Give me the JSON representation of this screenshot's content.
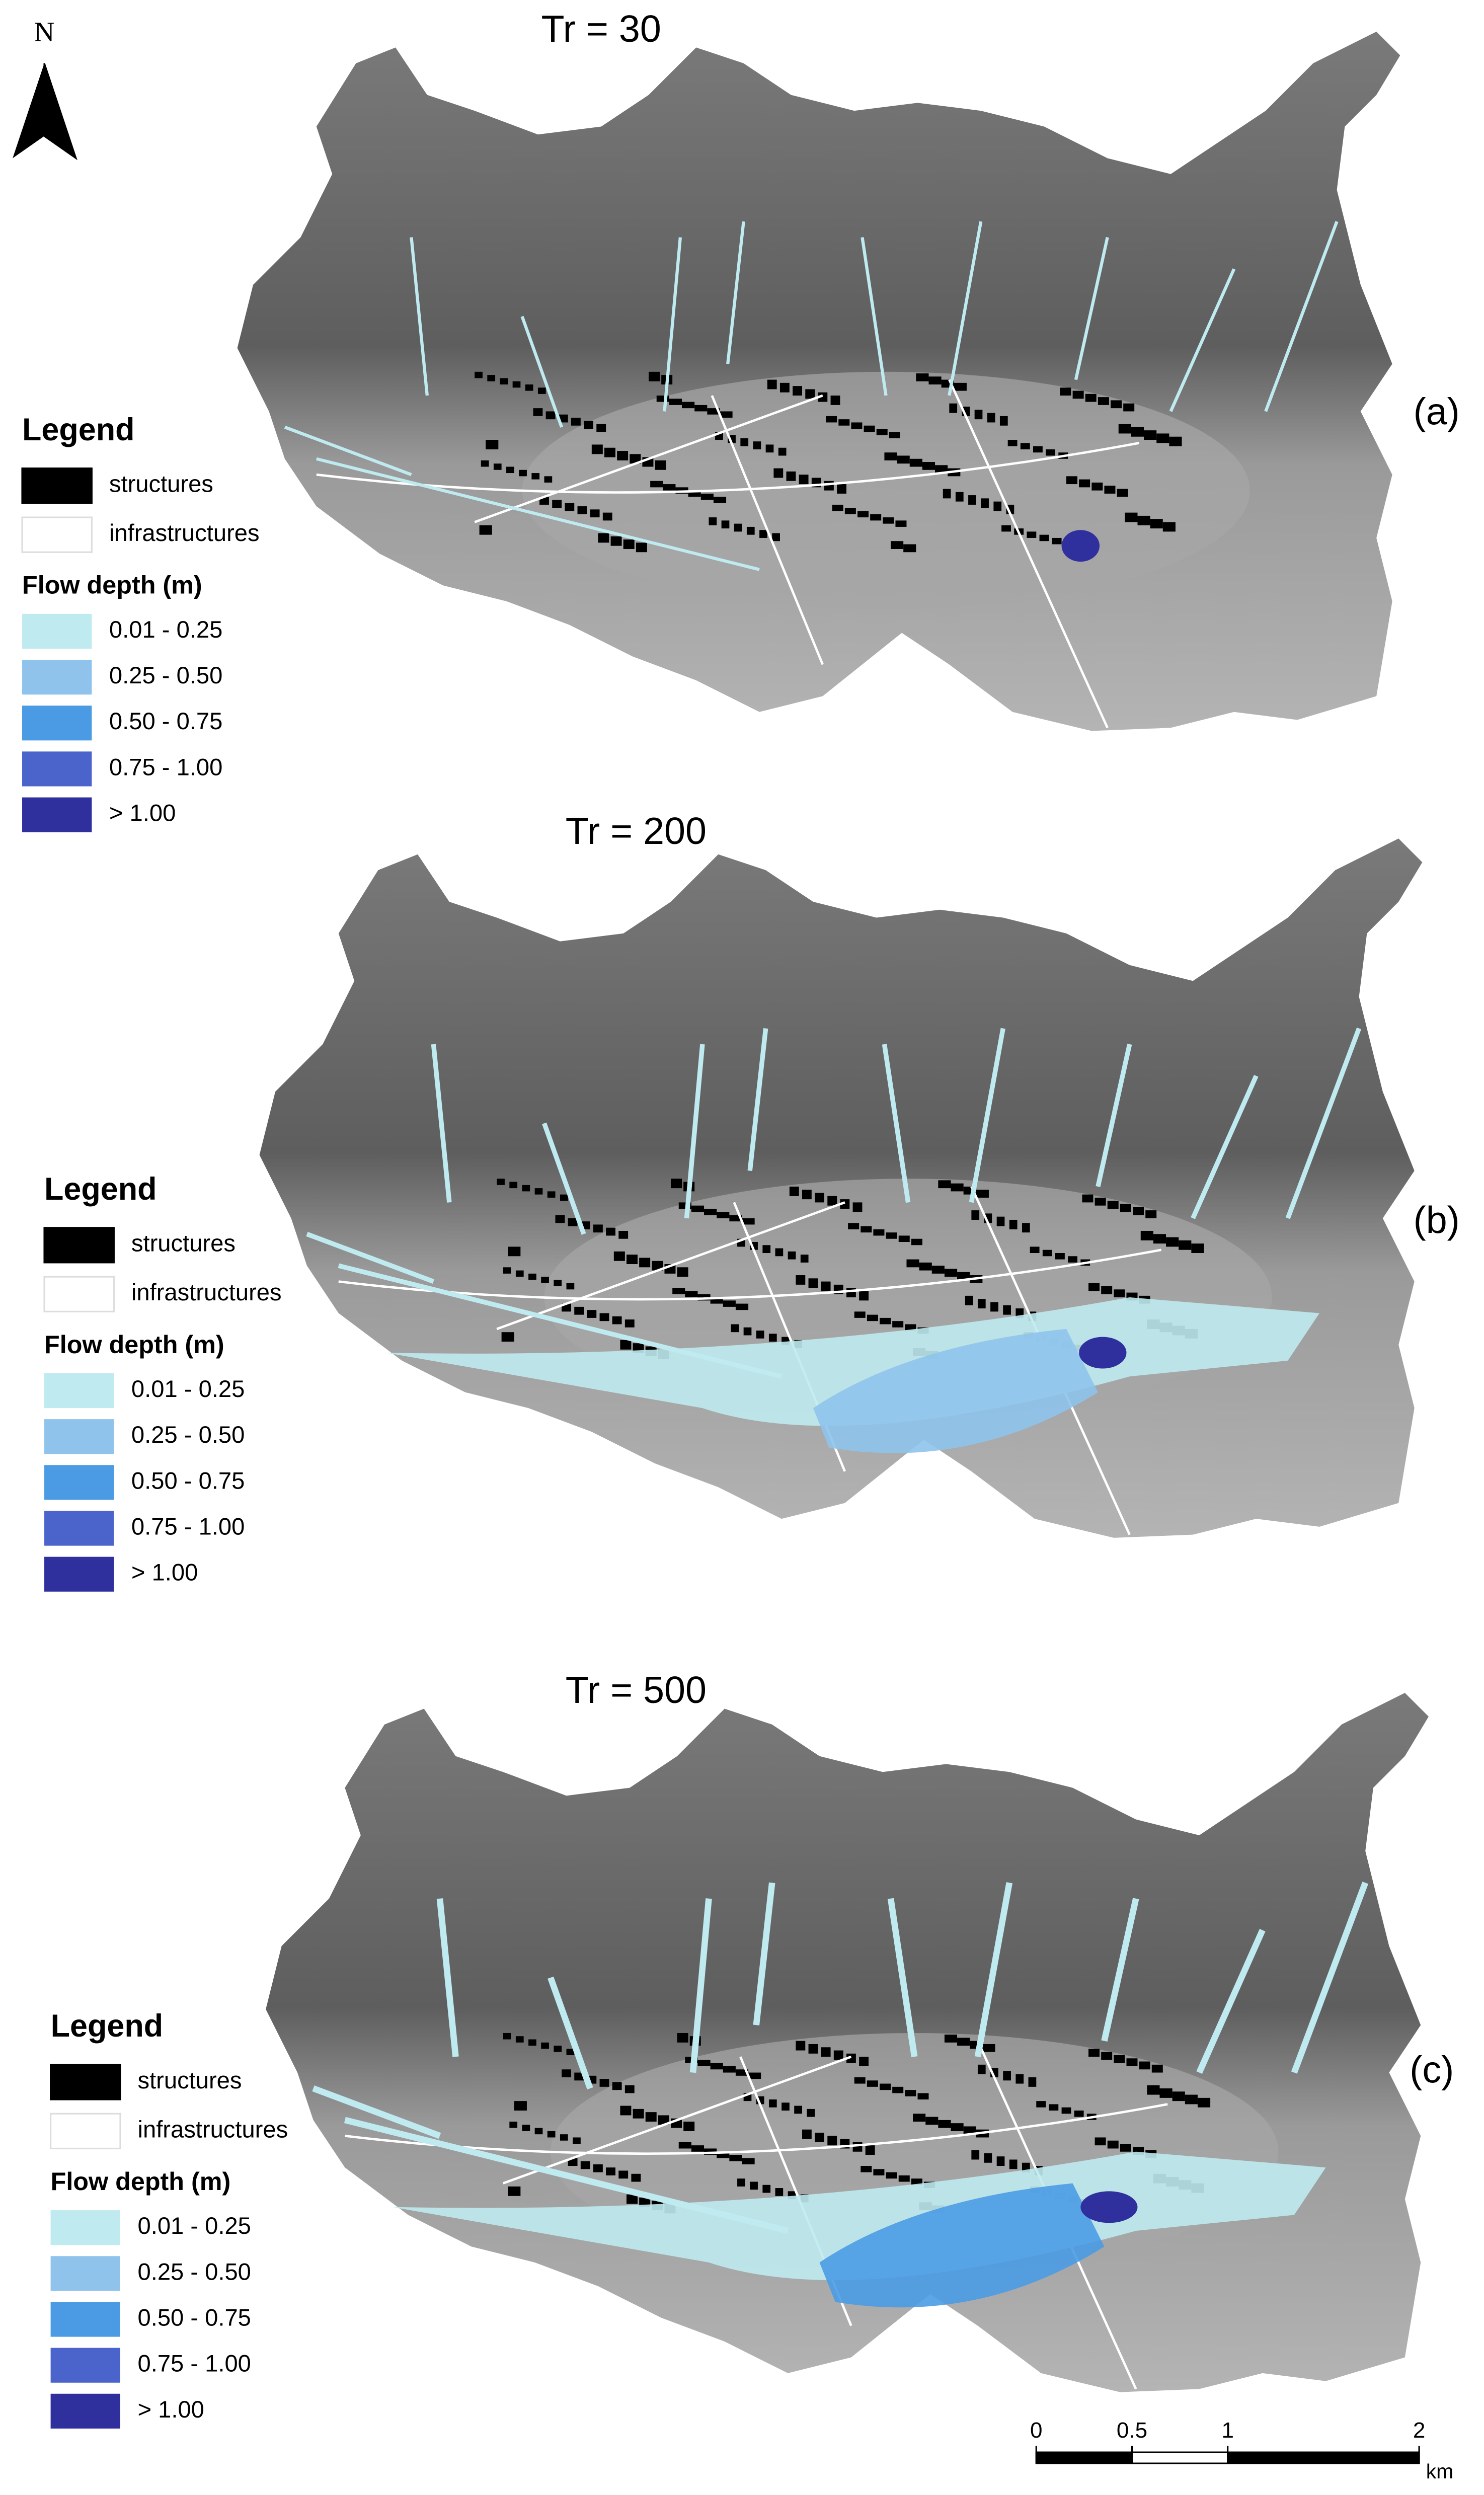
{
  "north_arrow": {
    "label": "N"
  },
  "panels": [
    {
      "title": "Tr = 30",
      "label": "(a)"
    },
    {
      "title": "Tr = 200",
      "label": "(b)"
    },
    {
      "title": "Tr = 500",
      "label": "(c)"
    }
  ],
  "legend": {
    "title": "Legend",
    "layers": [
      {
        "label": "structures",
        "color": "#000000"
      },
      {
        "label": "infrastructures",
        "color": "#ffffff"
      }
    ],
    "flow_depth_title": "Flow depth (m)",
    "classes": [
      {
        "label": "0.01 - 0.25",
        "color": "#bfeaf0"
      },
      {
        "label": "0.25 - 0.50",
        "color": "#8fc3ec"
      },
      {
        "label": "0.50 - 0.75",
        "color": "#4a9be4"
      },
      {
        "label": "0.75 - 1.00",
        "color": "#4a64cc"
      },
      {
        "label": "> 1.00",
        "color": "#2f2f9e"
      }
    ]
  },
  "scale_bar": {
    "ticks": [
      0,
      0.5,
      1,
      2
    ],
    "unit": "km"
  }
}
